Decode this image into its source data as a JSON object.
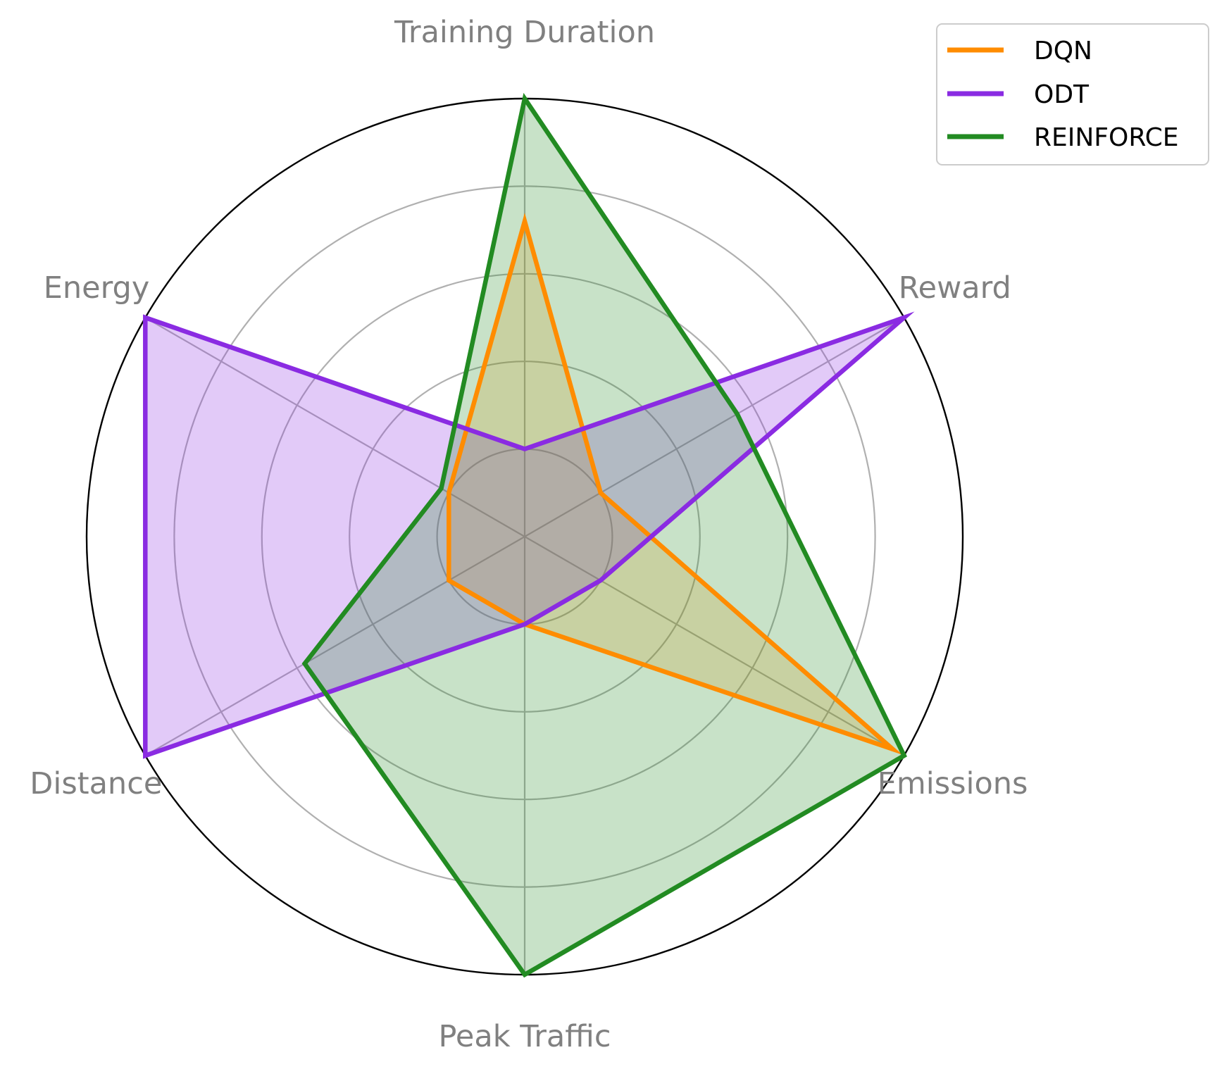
{
  "chart_data": {
    "type": "radar",
    "axes": [
      "Training Duration",
      "Reward",
      "Emissions",
      "Peak Traffic",
      "Distance",
      "Energy"
    ],
    "rlim": [
      0,
      1
    ],
    "grid_rings": [
      0.2,
      0.4,
      0.6,
      0.8
    ],
    "grid": true,
    "legend_position": "top-right",
    "series": [
      {
        "name": "DQN",
        "color": "#ff8c00",
        "fill_opacity": 0.2,
        "values": [
          0.72,
          0.2,
          0.97,
          0.2,
          0.2,
          0.2
        ]
      },
      {
        "name": "ODT",
        "color": "#8a2be2",
        "fill_opacity": 0.25,
        "values": [
          0.2,
          1.0,
          0.2,
          0.2,
          1.0,
          1.0
        ]
      },
      {
        "name": "REINFORCE",
        "color": "#228b22",
        "fill_opacity": 0.25,
        "values": [
          1.0,
          0.56,
          1.0,
          1.0,
          0.58,
          0.22
        ]
      }
    ]
  }
}
